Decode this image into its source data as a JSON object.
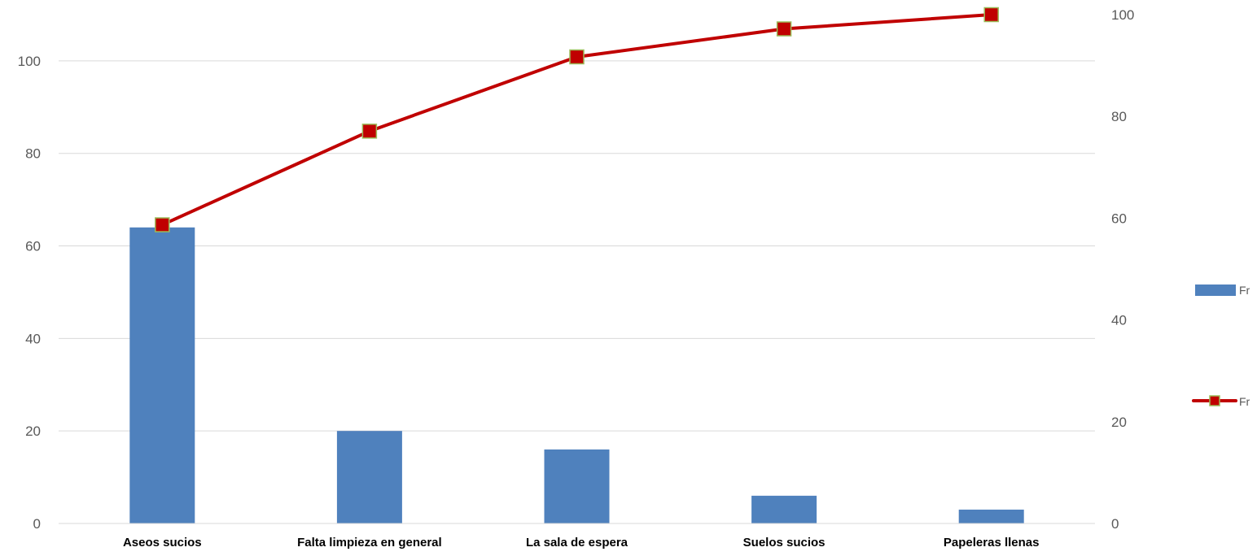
{
  "chart_data": {
    "type": "bar",
    "categories": [
      "Aseos sucios",
      "Falta limpieza en general",
      "La sala de espera",
      "Suelos sucios",
      "Papeleras llenas"
    ],
    "series": [
      {
        "name": "Fr",
        "type": "bar",
        "axis": "left",
        "values": [
          64,
          20,
          16,
          6,
          3
        ],
        "color": "#4F81BD"
      },
      {
        "name": "Fr",
        "type": "line",
        "axis": "right",
        "values": [
          58.7,
          77.1,
          91.7,
          97.2,
          100
        ],
        "color": "#C00000",
        "marker_fill": "#C00000",
        "marker_border": "#9BBB59"
      }
    ],
    "y_left": {
      "ylim": [
        0,
        110
      ],
      "ticks": [
        0,
        20,
        40,
        60,
        80,
        100
      ]
    },
    "y_right": {
      "ylim": [
        0,
        100
      ],
      "ticks": [
        0,
        20,
        40,
        60,
        80,
        100
      ]
    },
    "grid": true,
    "gridline_color": "#D9D9D9",
    "legend_position": "right",
    "title": "",
    "xlabel": "",
    "ylabel": ""
  }
}
